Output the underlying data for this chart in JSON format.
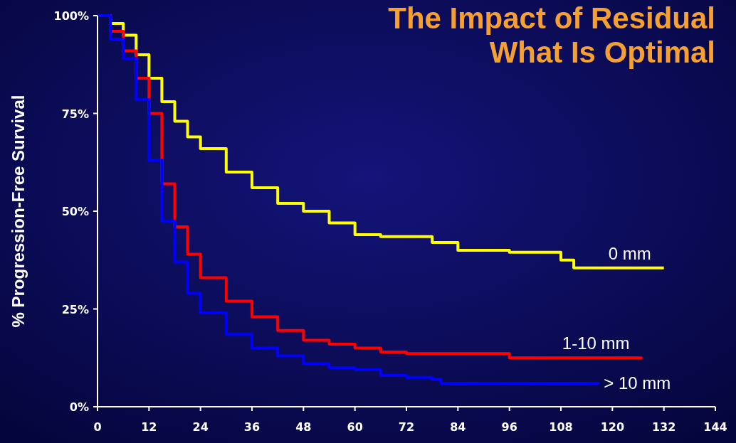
{
  "chart_data": {
    "type": "step",
    "title": "The Impact of Residual",
    "subtitle": "What Is Optimal",
    "ylabel": "% Progression-Free Survival",
    "xlim": [
      0,
      144
    ],
    "xticks": [
      0,
      12,
      24,
      36,
      48,
      60,
      72,
      84,
      96,
      108,
      120,
      132,
      144
    ],
    "ylim": [
      0,
      100
    ],
    "yticks": [
      {
        "value": 0,
        "label": "0%"
      },
      {
        "value": 25,
        "label": "25%"
      },
      {
        "value": 50,
        "label": "50%"
      },
      {
        "value": 75,
        "label": "75%"
      },
      {
        "value": 100,
        "label": "100%"
      }
    ],
    "grid": false,
    "series": [
      {
        "name": "0 mm",
        "color": "#ffff00",
        "x": [
          0,
          3,
          6,
          9,
          12,
          15,
          18,
          21,
          24,
          30,
          36,
          42,
          48,
          54,
          60,
          66,
          72,
          78,
          84,
          90,
          96,
          104,
          108,
          111,
          132
        ],
        "values": [
          100,
          98,
          95,
          90,
          84,
          78,
          73,
          69,
          66,
          60,
          56,
          52,
          50,
          47,
          44,
          43.5,
          43.5,
          42,
          40,
          40,
          39.5,
          39.5,
          37.5,
          35.5,
          35.5
        ]
      },
      {
        "name": "1-10 mm",
        "color": "#ff0000",
        "x": [
          0,
          3,
          6,
          9,
          12,
          15,
          18,
          21,
          24,
          30,
          36,
          42,
          48,
          54,
          60,
          66,
          72,
          84,
          96,
          127
        ],
        "values": [
          100,
          96,
          91,
          84,
          75,
          57,
          46,
          39,
          33,
          27,
          23,
          19.5,
          17,
          16,
          15,
          14,
          13.6,
          13.6,
          12.5,
          12.5
        ]
      },
      {
        "name": "> 10 mm",
        "color": "#0000ff",
        "x": [
          0,
          3,
          6,
          9,
          12,
          15,
          18,
          21,
          24,
          30,
          36,
          42,
          48,
          54,
          60,
          66,
          72,
          78,
          80,
          117
        ],
        "values": [
          100,
          94,
          89,
          78.5,
          63,
          47.5,
          37,
          29,
          24,
          18.5,
          15,
          13,
          11,
          10,
          9.5,
          8,
          7.5,
          7,
          6,
          6
        ]
      }
    ]
  }
}
